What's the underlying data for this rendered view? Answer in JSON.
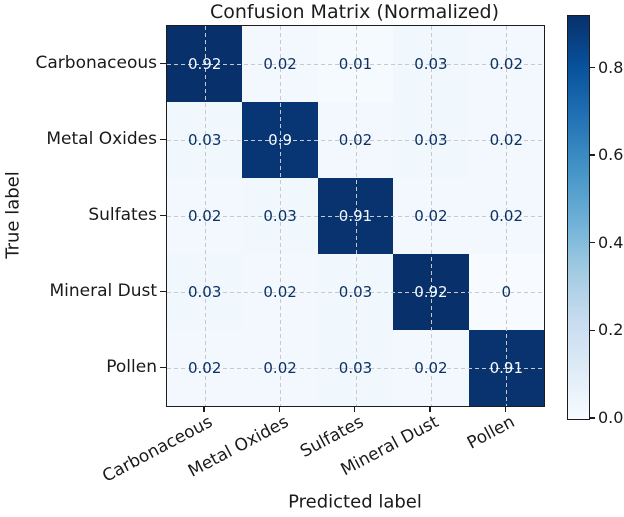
{
  "chart_data": {
    "type": "heatmap",
    "title": "Confusion Matrix (Normalized)",
    "xlabel": "Predicted label",
    "ylabel": "True label",
    "x_categories": [
      "Carbonaceous",
      "Metal Oxides",
      "Sulfates",
      "Mineral Dust",
      "Pollen"
    ],
    "y_categories": [
      "Carbonaceous",
      "Metal Oxides",
      "Sulfates",
      "Mineral Dust",
      "Pollen"
    ],
    "matrix": [
      [
        0.92,
        0.02,
        0.01,
        0.03,
        0.02
      ],
      [
        0.03,
        0.9,
        0.02,
        0.03,
        0.02
      ],
      [
        0.02,
        0.03,
        0.91,
        0.02,
        0.02
      ],
      [
        0.03,
        0.02,
        0.03,
        0.92,
        0
      ],
      [
        0.02,
        0.02,
        0.03,
        0.02,
        0.91
      ]
    ],
    "vmin": 0,
    "vmax": 0.92,
    "colormap": "Blues",
    "colorbar_ticks": [
      "0.0",
      "0.2",
      "0.4",
      "0.6",
      "0.8"
    ],
    "grid": "dashed, through cell centers",
    "legend_position": "colorbar-right"
  },
  "colors": {
    "cmap_stops": [
      "#f7fbff",
      "#deebf7",
      "#c6dbef",
      "#9ecae1",
      "#6baed6",
      "#4292c6",
      "#2171b5",
      "#08519c",
      "#08306b"
    ],
    "cell_text_dark": "#0b3266",
    "cell_text_light": "#f4f9ff",
    "grid_line": "#c9c9c9",
    "axis_text": "#1a1a1a"
  }
}
